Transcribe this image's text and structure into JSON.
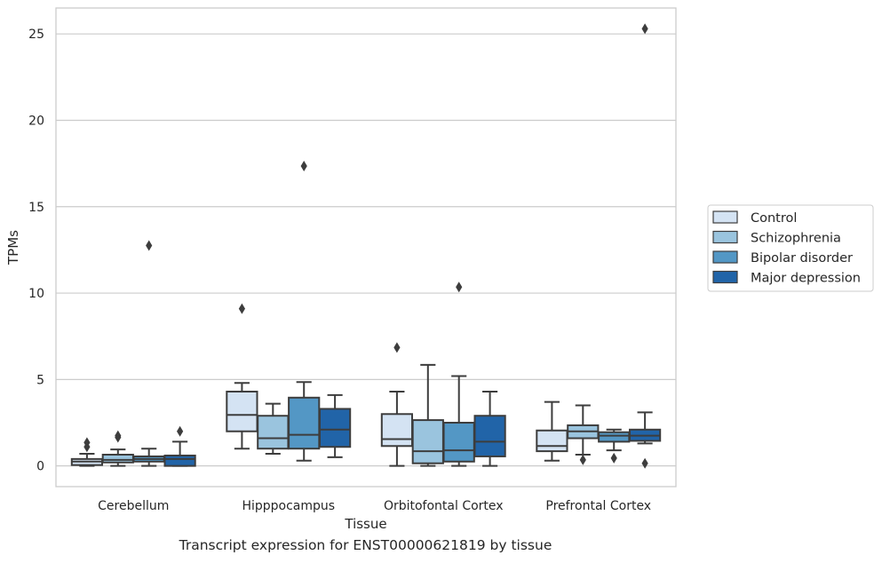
{
  "caption": "Transcript expression for ENST00000621819 by tissue",
  "chart_data": {
    "type": "box",
    "xlabel": "Tissue",
    "ylabel": "TPMs",
    "ylim": [
      -1.2,
      26.5
    ],
    "yticks": [
      0,
      5,
      10,
      15,
      20,
      25
    ],
    "grid": "horizontal",
    "legend_position": "right-outside",
    "categories": [
      "Cerebellum",
      "Hipppocampus",
      "Orbitofontal Cortex",
      "Prefrontal Cortex"
    ],
    "series": [
      {
        "name": "Control",
        "color": "#d4e3f3",
        "boxes": [
          {
            "whislo": 0.0,
            "q1": 0.05,
            "med": 0.25,
            "q3": 0.4,
            "whishi": 0.7,
            "fliers": [
              1.1,
              1.35
            ]
          },
          {
            "whislo": 1.0,
            "q1": 2.0,
            "med": 2.95,
            "q3": 4.3,
            "whishi": 4.8,
            "fliers": [
              9.1
            ]
          },
          {
            "whislo": 0.0,
            "q1": 1.15,
            "med": 1.55,
            "q3": 3.0,
            "whishi": 4.3,
            "fliers": [
              6.85
            ]
          },
          {
            "whislo": 0.3,
            "q1": 0.85,
            "med": 1.15,
            "q3": 2.05,
            "whishi": 3.7,
            "fliers": []
          }
        ]
      },
      {
        "name": "Schizophrenia",
        "color": "#9ac4de",
        "boxes": [
          {
            "whislo": 0.0,
            "q1": 0.2,
            "med": 0.35,
            "q3": 0.65,
            "whishi": 0.95,
            "fliers": [
              1.65,
              1.75
            ]
          },
          {
            "whislo": 0.7,
            "q1": 1.0,
            "med": 1.6,
            "q3": 2.9,
            "whishi": 3.6,
            "fliers": []
          },
          {
            "whislo": 0.0,
            "q1": 0.15,
            "med": 0.85,
            "q3": 2.65,
            "whishi": 5.85,
            "fliers": []
          },
          {
            "whislo": 0.65,
            "q1": 1.6,
            "med": 2.0,
            "q3": 2.35,
            "whishi": 3.5,
            "fliers": [
              0.35
            ]
          }
        ]
      },
      {
        "name": "Bipolar disorder",
        "color": "#5397c5",
        "boxes": [
          {
            "whislo": 0.0,
            "q1": 0.25,
            "med": 0.4,
            "q3": 0.55,
            "whishi": 1.0,
            "fliers": [
              12.75
            ]
          },
          {
            "whislo": 0.3,
            "q1": 1.0,
            "med": 1.8,
            "q3": 3.95,
            "whishi": 4.85,
            "fliers": [
              17.35
            ]
          },
          {
            "whislo": 0.0,
            "q1": 0.25,
            "med": 0.9,
            "q3": 2.5,
            "whishi": 5.2,
            "fliers": [
              10.35
            ]
          },
          {
            "whislo": 0.9,
            "q1": 1.4,
            "med": 1.75,
            "q3": 1.95,
            "whishi": 2.1,
            "fliers": [
              0.45
            ]
          }
        ]
      },
      {
        "name": "Major depression",
        "color": "#2164a8",
        "boxes": [
          {
            "whislo": 0.0,
            "q1": 0.0,
            "med": 0.4,
            "q3": 0.6,
            "whishi": 1.4,
            "fliers": [
              2.0
            ]
          },
          {
            "whislo": 0.5,
            "q1": 1.1,
            "med": 2.1,
            "q3": 3.3,
            "whishi": 4.1,
            "fliers": []
          },
          {
            "whislo": 0.0,
            "q1": 0.55,
            "med": 1.4,
            "q3": 2.9,
            "whishi": 4.3,
            "fliers": []
          },
          {
            "whislo": 1.3,
            "q1": 1.45,
            "med": 1.75,
            "q3": 2.1,
            "whishi": 3.1,
            "fliers": [
              25.3,
              0.15
            ]
          }
        ]
      }
    ]
  }
}
